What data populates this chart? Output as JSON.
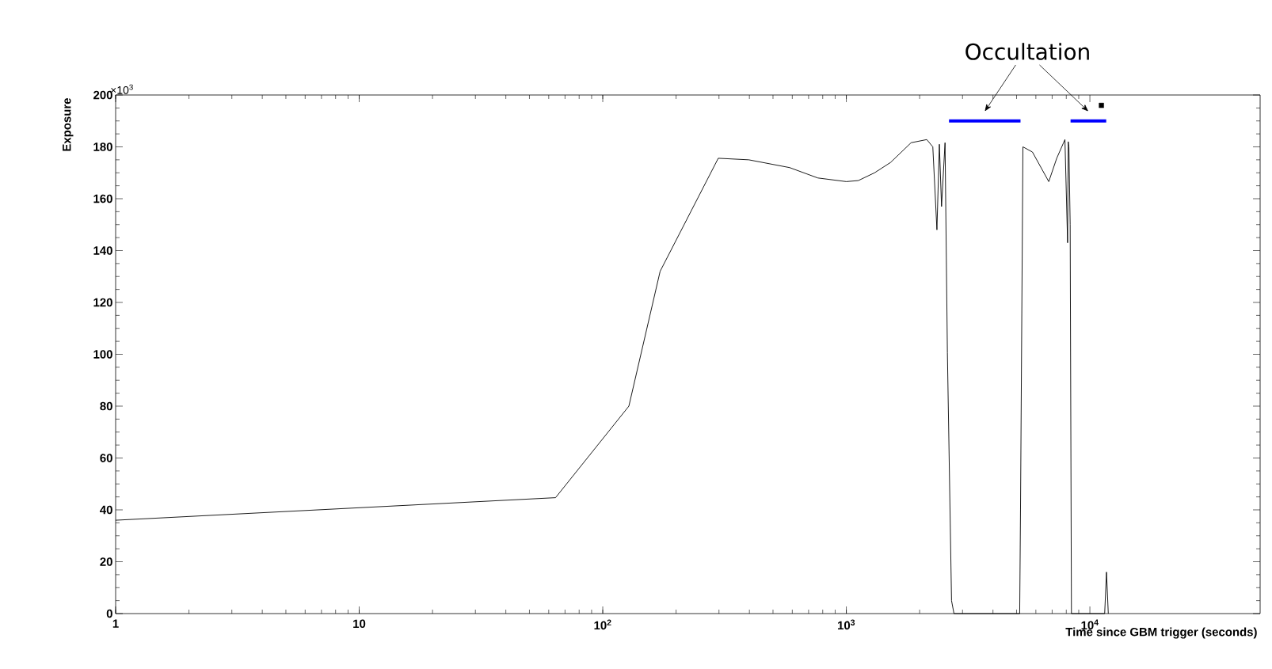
{
  "chart_data": {
    "type": "line",
    "xlabel": "Time since GBM trigger (seconds)",
    "ylabel": "Exposure",
    "log": "x",
    "xlim": [
      1,
      50000
    ],
    "ylim": [
      0,
      200
    ],
    "xticks": [
      1,
      10,
      {
        "value": 100,
        "label": "10$^{2}$"
      },
      {
        "value": 1000,
        "label": "10$^{3}$"
      },
      {
        "value": 10000,
        "label": "10$^{4}$"
      }
    ],
    "yticks": [
      0,
      20,
      40,
      60,
      80,
      100,
      120,
      140,
      160,
      180,
      200
    ],
    "grid": false,
    "annotations": [
      "×10$^{3}$",
      "Occultation"
    ],
    "series": [
      {
        "color": "#000000",
        "x": [
          1,
          64,
          128,
          172,
          298,
          398,
          585,
          764,
          1000,
          1120,
          1306,
          1520,
          1845,
          2140,
          2265,
          2355,
          2410,
          2460,
          2543,
          2600,
          2704,
          2767,
          5150,
          5190,
          5310,
          5810,
          6780,
          7310,
          7900,
          8100,
          8150,
          8200,
          8300,
          8400,
          11500,
          11700,
          11900
        ],
        "values": [
          36,
          44.7,
          80,
          132,
          175.6,
          175,
          172,
          168,
          166.6,
          167,
          170,
          174,
          181.6,
          182.8,
          180,
          148,
          181,
          157,
          181.6,
          100.6,
          5,
          0,
          0,
          40,
          180,
          178,
          166.6,
          175.6,
          182.8,
          143,
          182,
          180,
          150,
          0,
          0,
          16,
          0
        ]
      },
      {
        "type": "line",
        "color": "#0000ff",
        "x": [
          2640,
          5190,
          5200,
          8330,
          11670
        ],
        "values": [
          190,
          190,
          null,
          190,
          190
        ]
      },
      {
        "type": "scatter",
        "marker": "square",
        "color": "#000000",
        "x": [
          11150
        ],
        "values": [
          196
        ]
      }
    ]
  }
}
